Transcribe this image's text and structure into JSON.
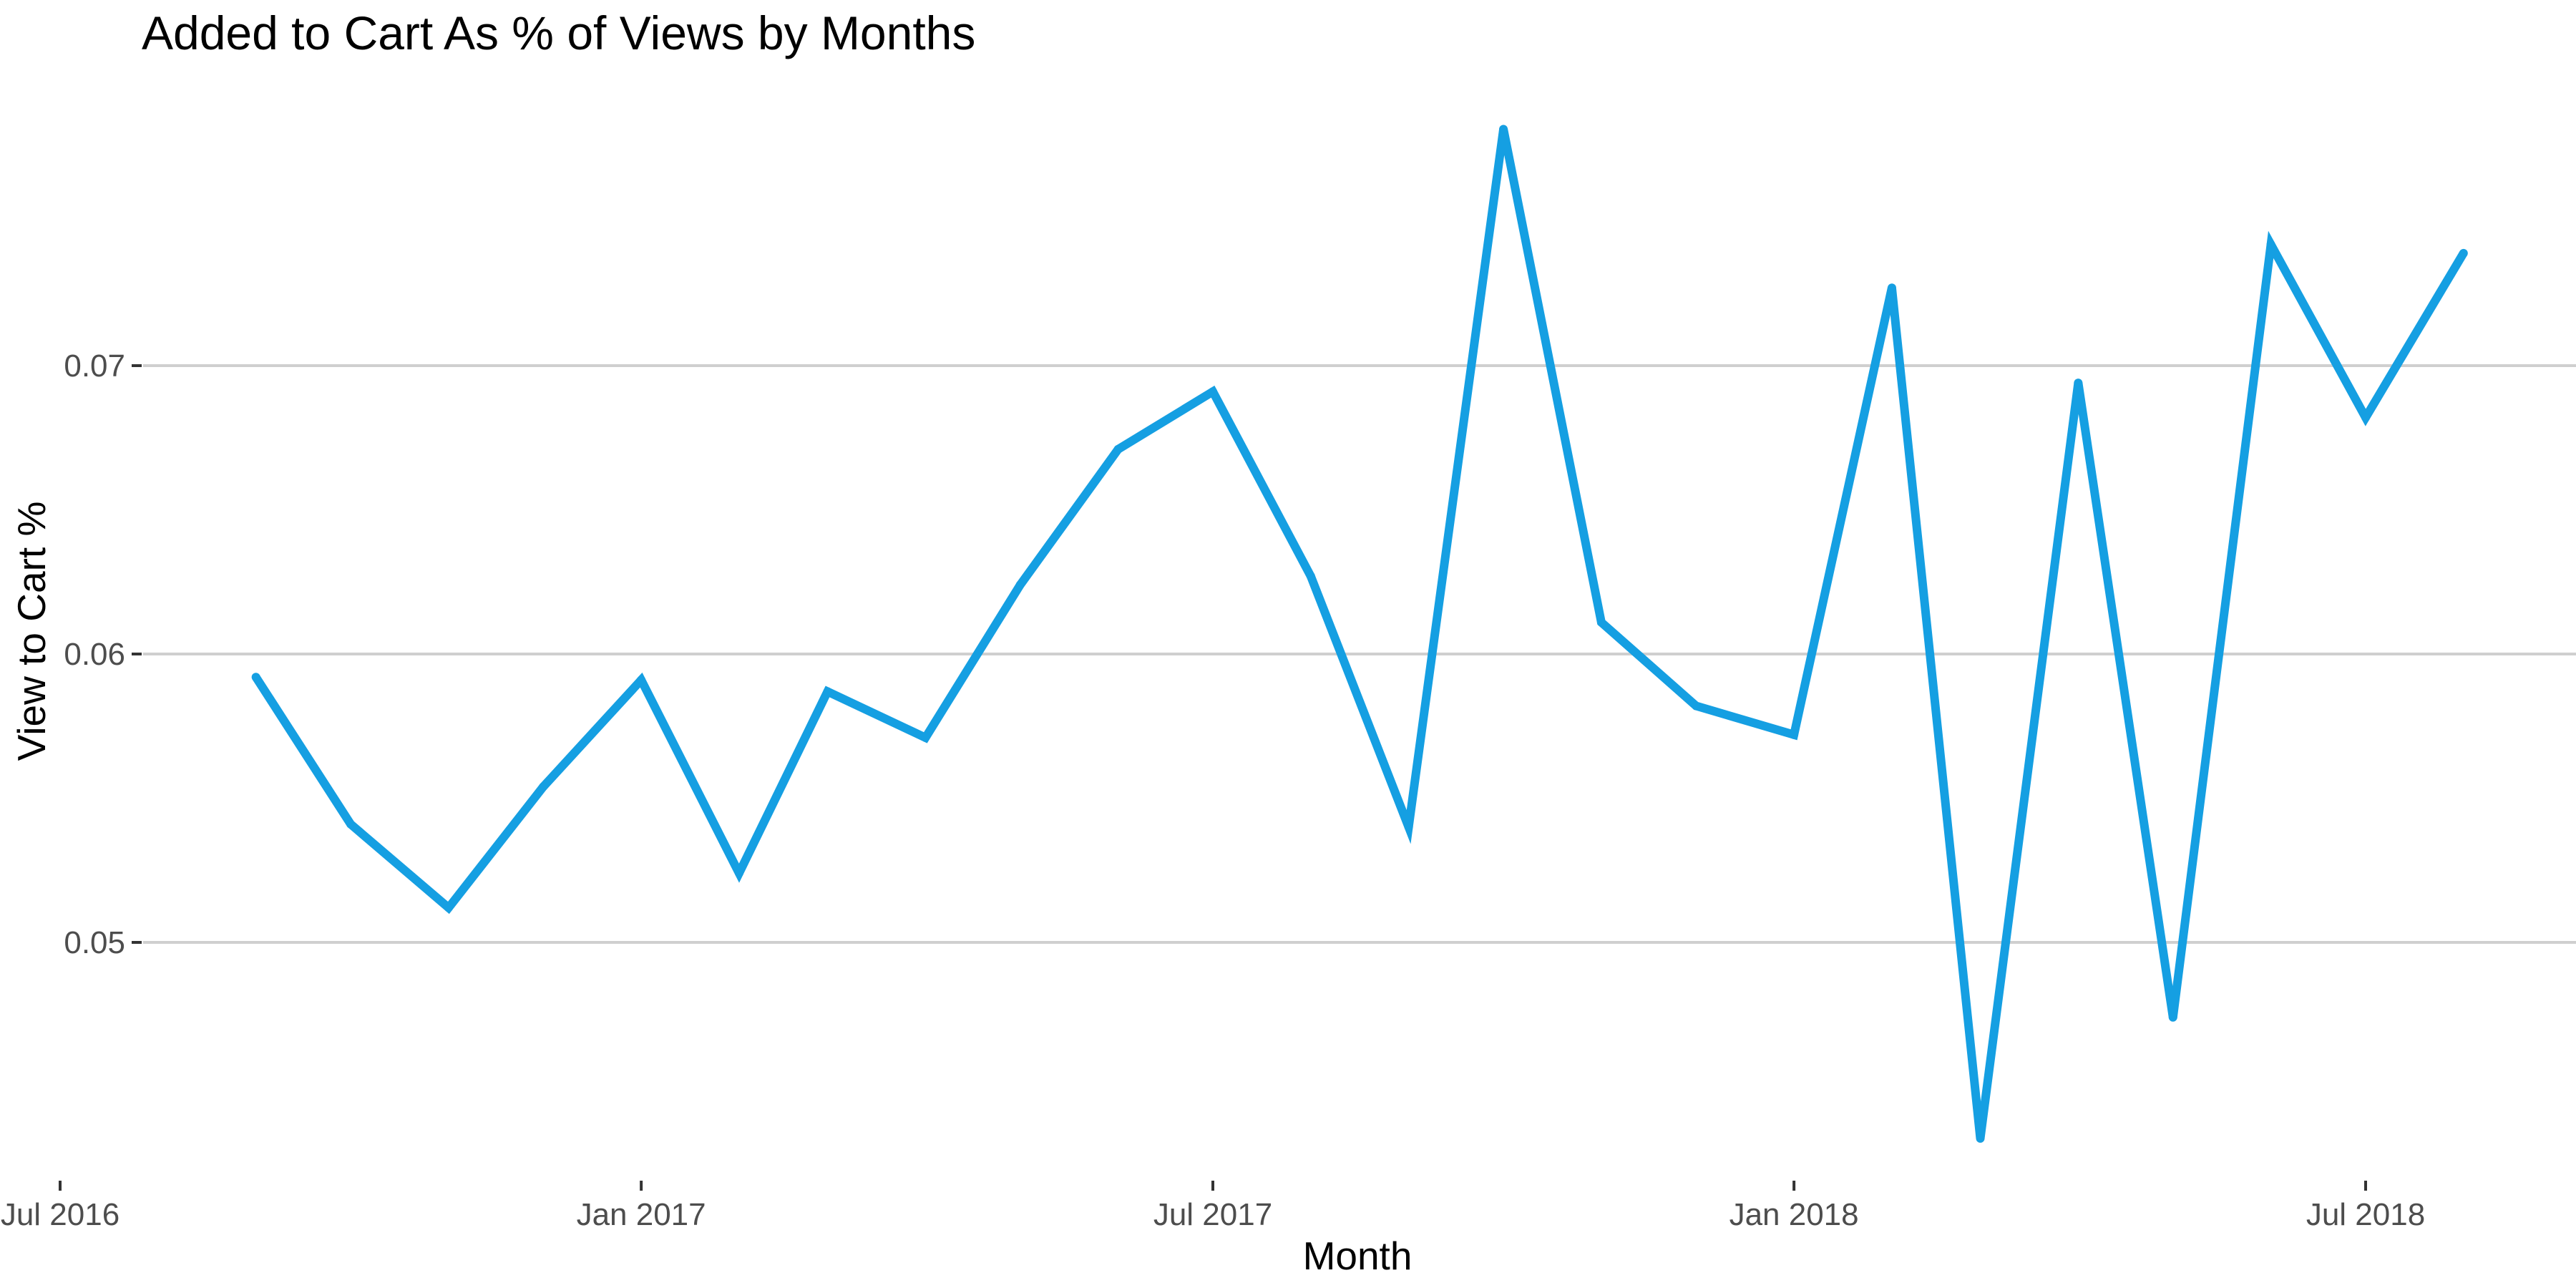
{
  "chart_data": {
    "type": "line",
    "title": "Added to Cart As % of Views by Months",
    "xlabel": "Month",
    "ylabel": "View to Cart %",
    "x_ticks": [
      "2016-07-01",
      "2017-01-01",
      "2017-07-01",
      "2018-01-01",
      "2018-07-01"
    ],
    "x_tick_labels": [
      "Jul 2016",
      "Jan 2017",
      "Jul 2017",
      "Jan 2018",
      "Jul 2018"
    ],
    "y_ticks": [
      0.05,
      0.06,
      0.07
    ],
    "y_tick_labels": [
      "0.05",
      "0.06",
      "0.07"
    ],
    "xlim": [
      "2016-07-01",
      "2018-10-15"
    ],
    "ylim": [
      0.0415,
      0.0795
    ],
    "grid": "horizontal major",
    "legend": "none",
    "color": "#159fe2",
    "series": [
      {
        "x": [
          "2016-09-01",
          "2016-10-01",
          "2016-11-01",
          "2016-12-01",
          "2017-01-01",
          "2017-02-01",
          "2017-03-01",
          "2017-04-01",
          "2017-05-01",
          "2017-06-01",
          "2017-07-01",
          "2017-08-01",
          "2017-09-01",
          "2017-10-01",
          "2017-11-01",
          "2017-12-01",
          "2018-01-01",
          "2018-02-01",
          "2018-03-01",
          "2018-04-01",
          "2018-05-01",
          "2018-06-01",
          "2018-07-01",
          "2018-08-01"
        ],
        "y": [
          0.0592,
          0.0541,
          0.0512,
          0.0554,
          0.0591,
          0.0524,
          0.0587,
          0.0571,
          0.0624,
          0.0671,
          0.0691,
          0.0627,
          0.054,
          0.0782,
          0.0611,
          0.0582,
          0.0572,
          0.0727,
          0.0432,
          0.0694,
          0.0474,
          0.0742,
          0.0682,
          0.0739
        ]
      }
    ]
  }
}
